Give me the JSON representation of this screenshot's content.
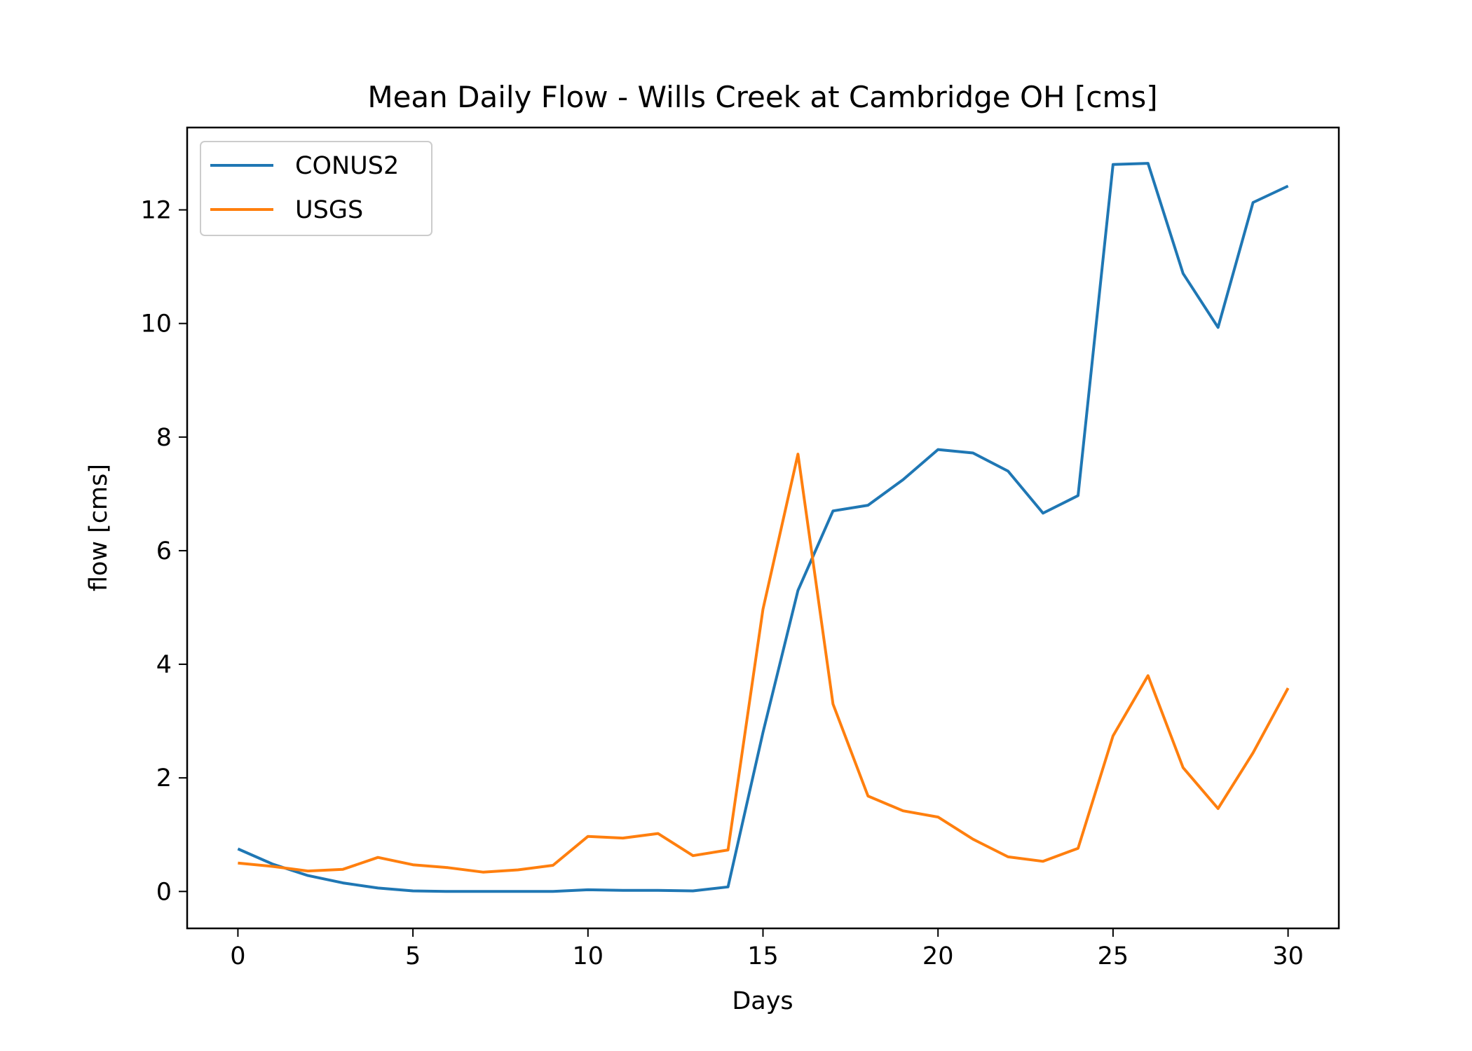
{
  "chart_data": {
    "type": "line",
    "title": "Mean Daily Flow - Wills Creek at Cambridge OH [cms]",
    "xlabel": "Days",
    "ylabel": "flow [cms]",
    "xlim": [
      -1.45,
      31.45
    ],
    "ylim": [
      -0.65,
      13.45
    ],
    "xticks": [
      0,
      5,
      10,
      15,
      20,
      25,
      30
    ],
    "yticks": [
      0,
      2,
      4,
      6,
      8,
      10,
      12
    ],
    "grid": false,
    "legend_position": "top-left",
    "x": [
      0,
      1,
      2,
      3,
      4,
      5,
      6,
      7,
      8,
      9,
      10,
      11,
      12,
      13,
      14,
      15,
      16,
      17,
      18,
      19,
      20,
      21,
      22,
      23,
      24,
      25,
      26,
      27,
      28,
      29,
      30
    ],
    "series": [
      {
        "name": "CONUS2",
        "color": "#1f77b4",
        "values": [
          0.75,
          0.48,
          0.28,
          0.15,
          0.06,
          0.01,
          0.0,
          0.0,
          0.0,
          0.0,
          0.03,
          0.02,
          0.02,
          0.01,
          0.08,
          2.8,
          5.3,
          6.7,
          6.8,
          7.25,
          7.78,
          7.72,
          7.4,
          6.66,
          6.97,
          12.8,
          12.82,
          10.88,
          9.93,
          12.13,
          12.42
        ]
      },
      {
        "name": "USGS",
        "color": "#ff7f0e",
        "values": [
          0.5,
          0.44,
          0.36,
          0.39,
          0.6,
          0.47,
          0.42,
          0.34,
          0.38,
          0.46,
          0.97,
          0.94,
          1.02,
          0.63,
          0.73,
          4.97,
          7.7,
          3.3,
          1.68,
          1.42,
          1.31,
          0.92,
          0.61,
          0.53,
          0.76,
          2.74,
          3.8,
          2.18,
          1.46,
          2.44,
          3.58
        ]
      }
    ]
  }
}
